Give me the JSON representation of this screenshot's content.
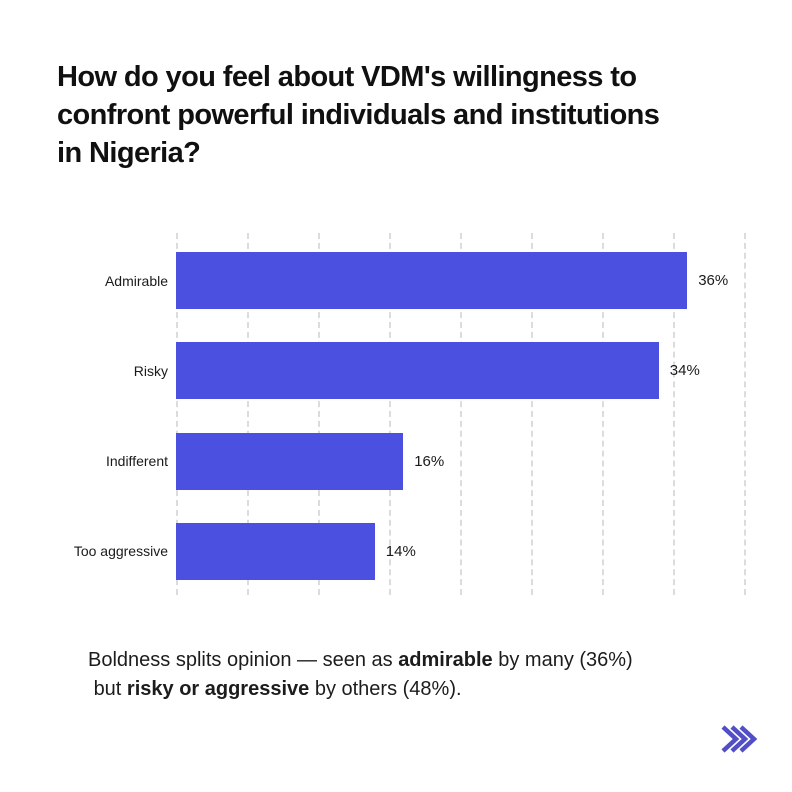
{
  "colors": {
    "background": "#ffffff",
    "title_text": "#101010",
    "label_text": "#1a1a1a",
    "bar": "#4b50e0",
    "gridline": "#dcdcdc",
    "chevron": "#514ec6"
  },
  "title": "How do you feel about VDM's willingness to\nconfront powerful individuals and institutions\nin Nigeria?",
  "chart_data": {
    "type": "bar",
    "orientation": "horizontal",
    "title": "",
    "xlabel": "",
    "ylabel": "",
    "categories": [
      "Admirable",
      "Risky",
      "Indifferent",
      "Too aggressive"
    ],
    "values": [
      36,
      34,
      16,
      14
    ],
    "value_labels": [
      "36%",
      "34%",
      "16%",
      "14%"
    ],
    "xlim": [
      0,
      40
    ],
    "gridline_step": 5,
    "grid": "vertical dashed gridlines, no tick labels, no axis line",
    "legend": "none",
    "bar_color": "#4b50e0"
  },
  "caption": {
    "segments": [
      {
        "text": "Boldness splits opinion — seen as ",
        "bold": false
      },
      {
        "text": "admirable",
        "bold": true
      },
      {
        "text": " by many (36%)\n but ",
        "bold": false
      },
      {
        "text": "risky or aggressive",
        "bold": true
      },
      {
        "text": " by others (48%).",
        "bold": false
      }
    ]
  },
  "footer": {
    "next_icon": "triple-chevron-right",
    "chevron_count": 3
  }
}
